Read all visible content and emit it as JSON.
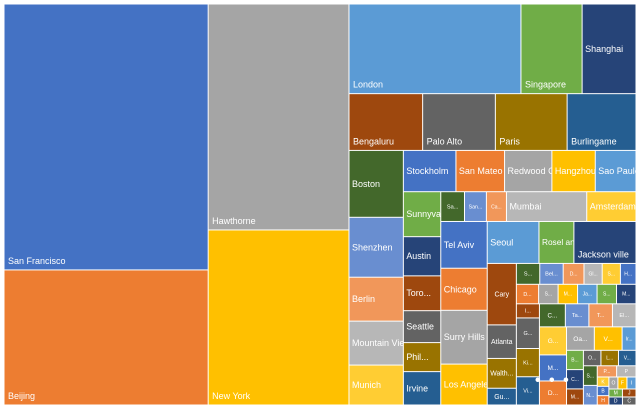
{
  "chart_data": {
    "type": "treemap",
    "colors": [
      "#4472c4",
      "#ed7d31",
      "#a5a5a5",
      "#ffc000",
      "#5b9bd5",
      "#70ad47",
      "#264478",
      "#9e480e",
      "#636363",
      "#997300",
      "#255e91",
      "#43682b",
      "#698ed0",
      "#f1975a",
      "#b7b7b7",
      "#ffcd33"
    ],
    "items": [
      {
        "label": "San Francisco",
        "value": 1000
      },
      {
        "label": "Beijing",
        "value": 508
      },
      {
        "label": "Hawthorne",
        "value": 586
      },
      {
        "label": "New York",
        "value": 454
      },
      {
        "label": "London",
        "value": 284
      },
      {
        "label": "Singapore",
        "value": 101
      },
      {
        "label": "Shanghai",
        "value": 89
      },
      {
        "label": "Bengaluru",
        "value": 77
      },
      {
        "label": "Palo Alto",
        "value": 76
      },
      {
        "label": "Paris",
        "value": 75
      },
      {
        "label": "Burlingame",
        "value": 72
      },
      {
        "label": "Boston",
        "value": 67
      },
      {
        "label": "Shenzhen",
        "value": 60
      },
      {
        "label": "Berlin",
        "value": 44
      },
      {
        "label": "Mountain View",
        "value": 44
      },
      {
        "label": "Munich",
        "value": 40
      },
      {
        "label": "Stockholm",
        "value": 40
      },
      {
        "label": "San Mateo",
        "value": 37
      },
      {
        "label": "Redwood City",
        "value": 36
      },
      {
        "label": "Hangzhou",
        "value": 33
      },
      {
        "label": "Sao Paulo",
        "value": 31
      },
      {
        "label": "Sunnyvale",
        "value": 31
      },
      {
        "label": "Austin",
        "value": 27
      },
      {
        "label": "Toro...",
        "value": 24
      },
      {
        "label": "Seattle",
        "value": 22
      },
      {
        "label": "Phil...",
        "value": 20
      },
      {
        "label": "Irvine",
        "value": 23
      },
      {
        "label": "Sa...",
        "value": 13
      },
      {
        "label": "San...",
        "value": 12
      },
      {
        "label": "Ca...",
        "value": 11
      },
      {
        "label": "Mumbai",
        "value": 44
      },
      {
        "label": "Amsterdam",
        "value": 27
      },
      {
        "label": "Tel Aviv",
        "value": 40
      },
      {
        "label": "Chicago",
        "value": 36
      },
      {
        "label": "Surry Hills",
        "value": 46
      },
      {
        "label": "Los Angeles",
        "value": 35
      },
      {
        "label": "Seoul",
        "value": 40
      },
      {
        "label": "Rosel and",
        "value": 27
      },
      {
        "label": "Jackson ville",
        "value": 48
      },
      {
        "label": "Cary",
        "value": 33
      },
      {
        "label": "Atlanta",
        "value": 18
      },
      {
        "label": "Walth...",
        "value": 16
      },
      {
        "label": "Gu...",
        "value": 9
      },
      {
        "label": "S...",
        "value": 9
      },
      {
        "label": "Bel...",
        "value": 9
      },
      {
        "label": "D...",
        "value": 8
      },
      {
        "label": "Gl...",
        "value": 7
      },
      {
        "label": "S...",
        "value": 7
      },
      {
        "label": "H...",
        "value": 6
      },
      {
        "label": "D...",
        "value": 8
      },
      {
        "label": "S...",
        "value": 7
      },
      {
        "label": "M...",
        "value": 7
      },
      {
        "label": "Ja...",
        "value": 7
      },
      {
        "label": "S...",
        "value": 7
      },
      {
        "label": "M...",
        "value": 7
      },
      {
        "label": "I...",
        "value": 6
      },
      {
        "label": "G...",
        "value": 13
      },
      {
        "label": "Ki...",
        "value": 12
      },
      {
        "label": "Vi...",
        "value": 12
      },
      {
        "label": "C...",
        "value": 11
      },
      {
        "label": "Ta...",
        "value": 10
      },
      {
        "label": "T...",
        "value": 10
      },
      {
        "label": "El...",
        "value": 10
      },
      {
        "label": "G...",
        "value": 14
      },
      {
        "label": "M...",
        "value": 13
      },
      {
        "label": "D...",
        "value": 12
      },
      {
        "label": "Oa...",
        "value": 12
      },
      {
        "label": "V...",
        "value": 12
      },
      {
        "label": "Ir...",
        "value": 6
      },
      {
        "label": "B...",
        "value": 6
      },
      {
        "label": "C...",
        "value": 6
      },
      {
        "label": "M...",
        "value": 5
      },
      {
        "label": "O...",
        "value": 5
      },
      {
        "label": "L...",
        "value": 5
      },
      {
        "label": "V...",
        "value": 5
      },
      {
        "label": "S...",
        "value": 5
      },
      {
        "label": "N...",
        "value": 5
      },
      {
        "label": "P...",
        "value": 4
      },
      {
        "label": "P",
        "value": 4
      },
      {
        "label": "K",
        "value": 2
      },
      {
        "label": "B",
        "value": 2
      },
      {
        "label": "H",
        "value": 2
      },
      {
        "label": "O",
        "value": 2
      },
      {
        "label": "F",
        "value": 2
      },
      {
        "label": "I",
        "value": 2
      },
      {
        "label": "M",
        "value": 2
      },
      {
        "label": "D",
        "value": 2
      },
      {
        "label": "J",
        "value": 2
      },
      {
        "label": "C",
        "value": 2
      }
    ],
    "overflow_label": "• • •"
  }
}
